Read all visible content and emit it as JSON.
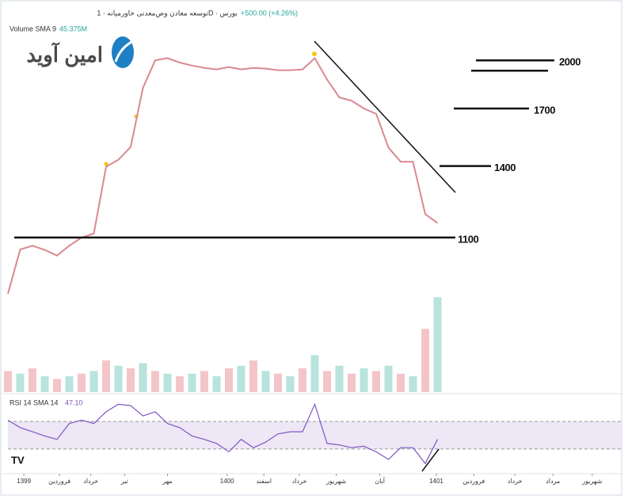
{
  "header": {
    "symbol": "توسعه معادن وص‌معدنی خاورمیانه · 1D · بورس",
    "change": "+500.00 (+4.26%)",
    "volume_label": "Volume SMA 9",
    "volume_value": "45.375M",
    "rsi_label": "RSI 14 SMA 14",
    "rsi_value": "47.10",
    "logo": "امین آوید"
  },
  "chart_data": [
    {
      "type": "line",
      "log_scale": true,
      "color": "#d9898f",
      "x": [
        0,
        2,
        4,
        6,
        8,
        10,
        12,
        14,
        16,
        18,
        20,
        22,
        24,
        26,
        28,
        30,
        32,
        34,
        36,
        38,
        40,
        42,
        44,
        46,
        48,
        50,
        52,
        54,
        56,
        58,
        60,
        62,
        64,
        66,
        68,
        70
      ],
      "values": [
        910,
        1056,
        1070,
        1055,
        1035,
        1070,
        1100,
        1115,
        1397,
        1430,
        1493,
        1823,
        2000,
        2015,
        1985,
        1965,
        1950,
        1940,
        1955,
        1940,
        1950,
        1945,
        1935,
        1935,
        1940,
        2015,
        1875,
        1765,
        1745,
        1700,
        1670,
        1490,
        1420,
        1420,
        1190,
        1155
      ],
      "xlim": [
        0,
        100
      ],
      "ylim": [
        800,
        2400
      ],
      "xticks": [
        {
          "value": 2.6,
          "label": "1399"
        },
        {
          "value": 8.4,
          "label": "فروردین"
        },
        {
          "value": 13.5,
          "label": "خرداد"
        },
        {
          "value": 19,
          "label": "تیر"
        },
        {
          "value": 26,
          "label": "مهر"
        },
        {
          "value": 35.7,
          "label": "1400"
        },
        {
          "value": 41.7,
          "label": "اسفند"
        },
        {
          "value": 47.5,
          "label": "خرداد"
        },
        {
          "value": 53.5,
          "label": "شهریور"
        },
        {
          "value": 60.6,
          "label": "آبان"
        },
        {
          "value": 69.8,
          "label": "1401"
        },
        {
          "value": 75.9,
          "label": "فروردین"
        },
        {
          "value": 82.6,
          "label": "خرداد"
        },
        {
          "value": 88.8,
          "label": "مرداد"
        },
        {
          "value": 95.2,
          "label": "شهریور"
        }
      ],
      "levels": [
        1100,
        1400,
        1700,
        2000
      ]
    },
    {
      "type": "bar",
      "color": "#b9e3dd",
      "x": [
        0,
        2,
        4,
        6,
        8,
        10,
        12,
        14,
        16,
        18,
        20,
        22,
        24,
        26,
        28,
        30,
        32,
        34,
        36,
        38,
        40,
        42,
        44,
        46,
        48,
        50,
        52,
        54,
        56,
        58,
        60,
        62,
        64,
        66,
        68,
        70
      ],
      "values": [
        40,
        35,
        45,
        30,
        25,
        30,
        35,
        40,
        60,
        50,
        45,
        55,
        40,
        35,
        30,
        35,
        40,
        30,
        45,
        50,
        60,
        40,
        35,
        30,
        45,
        70,
        40,
        50,
        35,
        45,
        40,
        50,
        35,
        30,
        120,
        180
      ],
      "xlim": [
        0,
        100
      ],
      "ylim": [
        0,
        200
      ]
    },
    {
      "type": "line",
      "color": "#7e57c2",
      "x": [
        0,
        2,
        4,
        6,
        8,
        10,
        12,
        14,
        16,
        18,
        20,
        22,
        24,
        26,
        28,
        30,
        32,
        34,
        36,
        38,
        40,
        42,
        44,
        46,
        48,
        50,
        52,
        54,
        56,
        58,
        60,
        62,
        64,
        66,
        68,
        70
      ],
      "values": [
        72,
        61,
        55,
        49,
        44,
        67,
        72,
        67,
        84,
        95,
        93,
        78,
        84,
        67,
        61,
        49,
        44,
        38,
        26,
        44,
        32,
        40,
        52,
        55,
        55,
        95,
        38,
        36,
        32,
        34,
        26,
        15,
        32,
        32,
        9,
        44
      ],
      "xlim": [
        0,
        100
      ],
      "ylim": [
        0,
        100
      ],
      "band": [
        30,
        70
      ]
    }
  ]
}
